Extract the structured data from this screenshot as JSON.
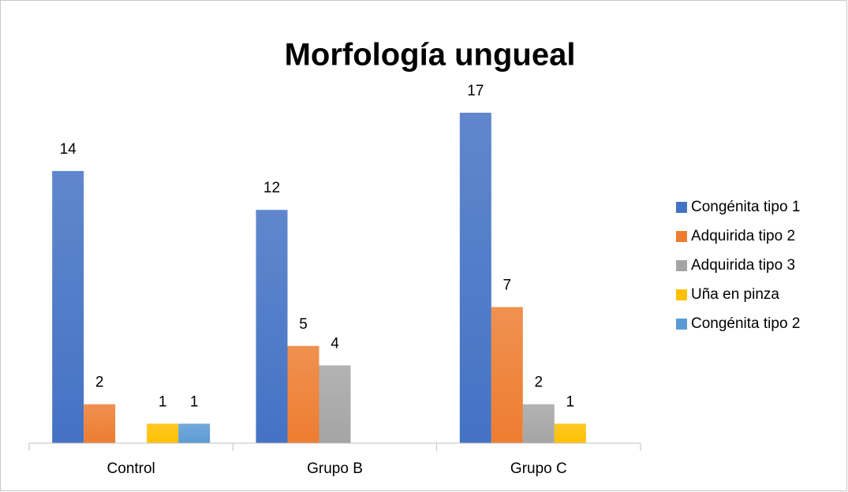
{
  "chart_data": {
    "type": "bar",
    "title": "Morfología ungueal",
    "categories": [
      "Control",
      "Grupo B",
      "Grupo C"
    ],
    "series": [
      {
        "name": "Congénita tipo 1",
        "color": "#4472c4",
        "values": [
          14,
          12,
          17
        ]
      },
      {
        "name": "Adquirida tipo 2",
        "color": "#ed7d31",
        "values": [
          2,
          5,
          7
        ]
      },
      {
        "name": "Adquirida tipo 3",
        "color": "#a5a5a5",
        "values": [
          null,
          4,
          2
        ]
      },
      {
        "name": "Uña en pinza",
        "color": "#ffc000",
        "values": [
          1,
          null,
          1
        ]
      },
      {
        "name": "Congénita tipo 2",
        "color": "#5b9bd5",
        "values": [
          1,
          null,
          null
        ]
      }
    ],
    "ylim": [
      0,
      20
    ],
    "legend": "right"
  }
}
